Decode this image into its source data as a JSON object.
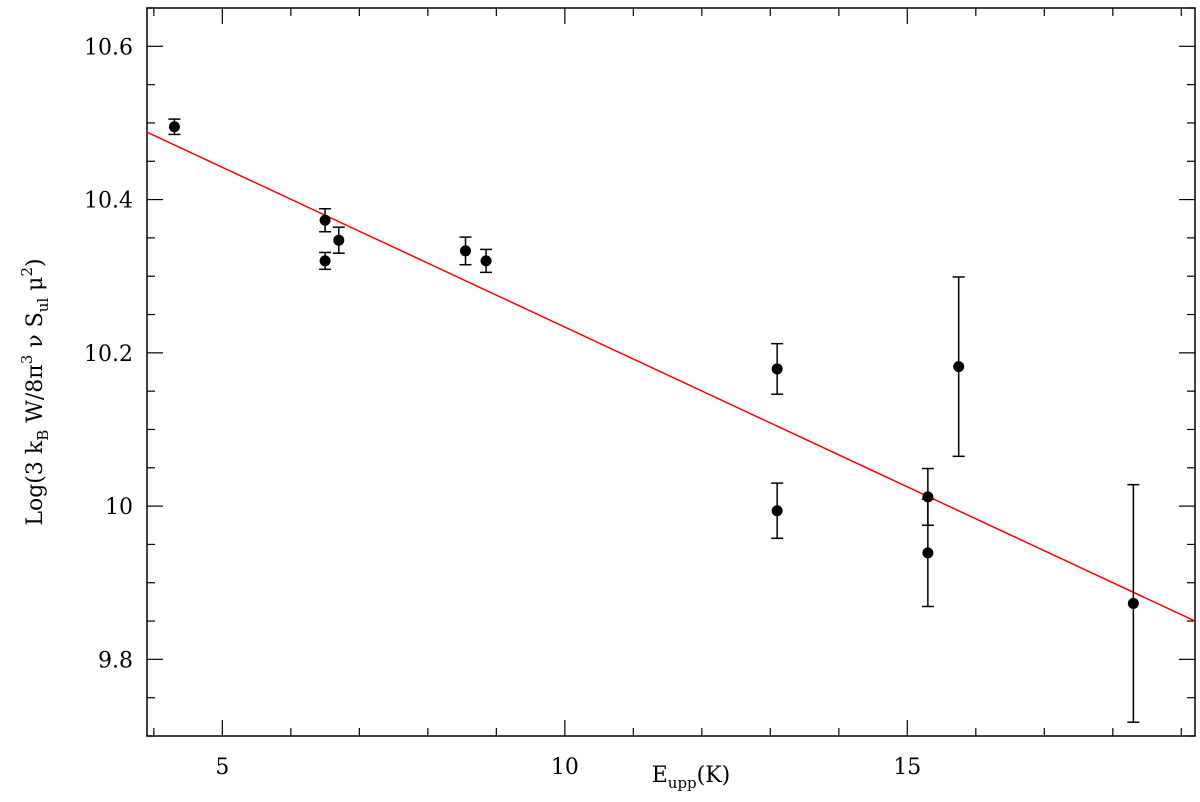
{
  "chart_data": {
    "type": "scatter",
    "title": "",
    "xlabel": "E_upp(K)",
    "xlabel_parts": {
      "main": "E",
      "sub": "upp",
      "tail": "(K)"
    },
    "ylabel": "Log(3 k_B W/8π^3 ν S_ul μ^2)",
    "ylabel_parts": {
      "p1": "Log(3 k",
      "s1": "B",
      "p2": " W/8π",
      "e1": "3",
      "p3": " ν S",
      "s2": "ul",
      "p4": " μ",
      "e2": "2",
      "p5": ")"
    },
    "xlim": [
      3.9,
      19.2
    ],
    "ylim": [
      9.7,
      10.65
    ],
    "xticks": [
      5,
      10,
      15
    ],
    "xtick_labels": [
      "5",
      "10",
      "15"
    ],
    "yticks": [
      9.8,
      10.0,
      10.2,
      10.4,
      10.6
    ],
    "ytick_labels": [
      "9.8",
      "10",
      "10.2",
      "10.4",
      "10.6"
    ],
    "x_minor_step": 1,
    "y_minor_step": 0.05,
    "grid": false,
    "points": [
      {
        "x": 4.3,
        "y": 10.495,
        "err": 0.01
      },
      {
        "x": 6.5,
        "y": 10.373,
        "err": 0.015
      },
      {
        "x": 6.5,
        "y": 10.32,
        "err": 0.011
      },
      {
        "x": 6.7,
        "y": 10.347,
        "err": 0.017
      },
      {
        "x": 8.55,
        "y": 10.333,
        "err": 0.018
      },
      {
        "x": 8.85,
        "y": 10.32,
        "err": 0.015
      },
      {
        "x": 13.1,
        "y": 10.179,
        "err": 0.033
      },
      {
        "x": 13.1,
        "y": 9.994,
        "err": 0.036
      },
      {
        "x": 15.3,
        "y": 10.012,
        "err": 0.037
      },
      {
        "x": 15.3,
        "y": 9.939,
        "err": 0.07
      },
      {
        "x": 15.75,
        "y": 10.182,
        "err": 0.117
      },
      {
        "x": 18.3,
        "y": 9.873,
        "err": 0.155
      }
    ],
    "fit_line": {
      "x": [
        3.9,
        19.2
      ],
      "y": [
        10.488,
        9.85
      ],
      "color": "#ff0000"
    },
    "point_color": "#000000"
  }
}
